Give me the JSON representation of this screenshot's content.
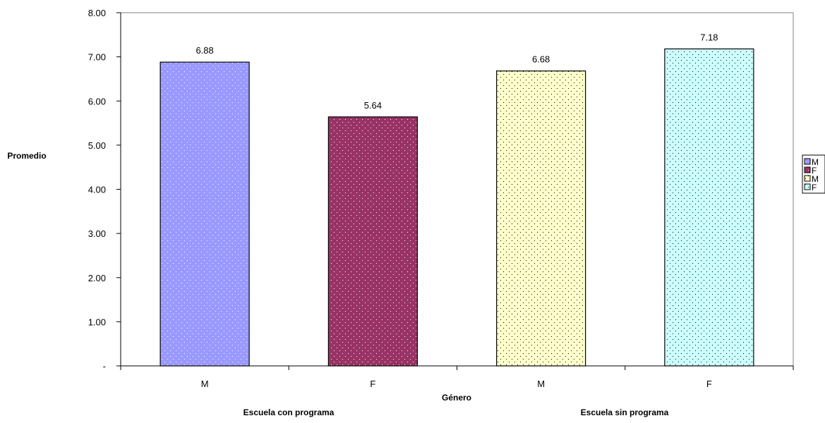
{
  "chart_data": {
    "type": "bar",
    "ylabel": "Promedio",
    "xlabel": "Género",
    "ylim": [
      0,
      8
    ],
    "y_tick_step": 1,
    "y_tick_labels": [
      "-",
      "1.00",
      "2.00",
      "3.00",
      "4.00",
      "5.00",
      "6.00",
      "7.00",
      "8.00"
    ],
    "categories": [
      "M",
      "F",
      "M",
      "F"
    ],
    "values": [
      6.88,
      5.64,
      6.68,
      7.18
    ],
    "value_labels": [
      "6.88",
      "5.64",
      "6.68",
      "7.18"
    ],
    "group_labels": [
      "Escuela con programa",
      "Escuela sin programa"
    ],
    "grid": false,
    "legend_position": "right",
    "legend_entries": [
      "M",
      "F",
      "M",
      "F"
    ],
    "bar_colors": [
      "#9999ff",
      "#993366",
      "#ffffcc",
      "#ccffff"
    ],
    "dot_colors": [
      "#ffffff",
      "#ffffff",
      "#000000",
      "#000000"
    ]
  }
}
